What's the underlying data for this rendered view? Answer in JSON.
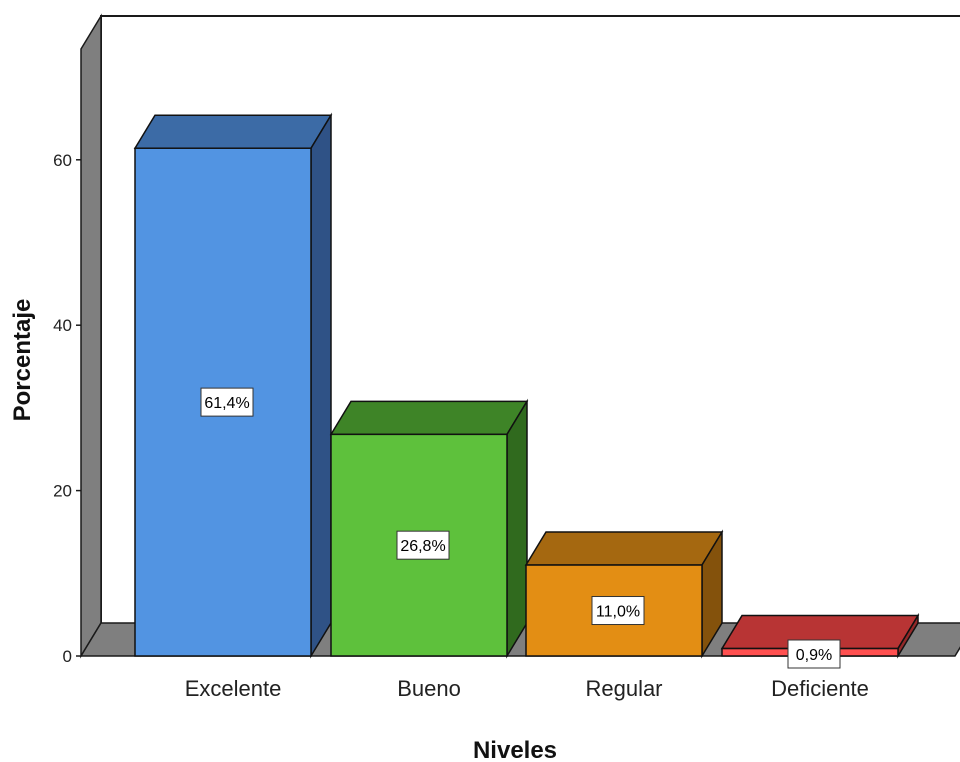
{
  "chart_data": {
    "type": "bar",
    "style": "3d",
    "title": "",
    "xlabel": "Niveles",
    "ylabel": "Porcentaje",
    "ylim": [
      0,
      75
    ],
    "yticks": [
      0,
      20,
      40,
      60
    ],
    "ytick_labels": [
      "0",
      "20",
      "40",
      "60"
    ],
    "grid": false,
    "legend": "none",
    "categories": [
      "Excelente",
      "Bueno",
      "Regular",
      "Deficiente"
    ],
    "values": [
      61.4,
      26.8,
      11.0,
      0.9
    ],
    "data_labels": [
      "61,4%",
      "26,8%",
      "11,0%",
      "0,9%"
    ],
    "colors": {
      "front": [
        "#5294e2",
        "#5ec13c",
        "#e38e14",
        "#ff5050"
      ],
      "top": [
        "#3c6ba6",
        "#3e8427",
        "#a56810",
        "#b83434"
      ],
      "side": [
        "#2f5286",
        "#306a1e",
        "#84520c",
        "#942828"
      ],
      "walls": "#7f7f7f",
      "floor": "#7f7f7f"
    }
  }
}
